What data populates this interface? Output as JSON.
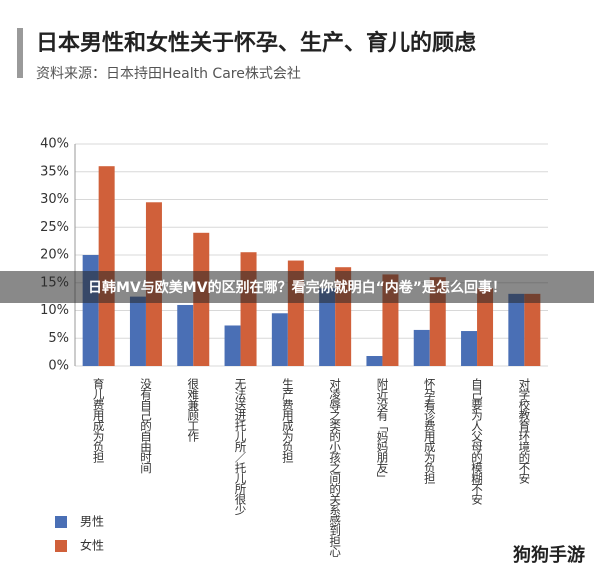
{
  "chart_data": {
    "type": "bar",
    "title": "日本男性和女性关于怀孕、生产、育儿的顾虑",
    "subtitle": "资料来源：日本持田Health Care株式会社",
    "categories": [
      "育儿费用成为负担",
      "没有自己的自由时间",
      "很难兼顾工作",
      "无法送进托儿所／托儿所很少",
      "生产费用成为负担",
      "对凌辱之类的小孩之间的关系感到担心",
      "附近没有「妈妈朋友」",
      "怀孕看诊费用成为负担",
      "自己要为人父母的模糊不安",
      "对学校教育环境的不安"
    ],
    "series": [
      {
        "name": "男性",
        "color": "#4a6fb5",
        "values": [
          20,
          12.5,
          11,
          7.3,
          9.5,
          14,
          1.8,
          6.5,
          6.3,
          13
        ]
      },
      {
        "name": "女性",
        "color": "#d0603a",
        "values": [
          36,
          29.5,
          24,
          20.5,
          19,
          17.8,
          16.5,
          16,
          14,
          13
        ]
      }
    ],
    "ylim": [
      0,
      40
    ],
    "yticks": [
      {
        "value": 0,
        "label": "0%"
      },
      {
        "value": 5,
        "label": "5%"
      },
      {
        "value": 10,
        "label": "10%"
      },
      {
        "value": 15,
        "label": "15%"
      },
      {
        "value": 20,
        "label": "20%"
      },
      {
        "value": 25,
        "label": "25%"
      },
      {
        "value": 30,
        "label": "30%"
      },
      {
        "value": 35,
        "label": "35%"
      },
      {
        "value": 40,
        "label": "40%"
      }
    ],
    "grid": true
  },
  "overlay_text": "日韩MV与欧美MV的区别在哪？看完你就明白“内卷”是怎么回事！",
  "watermark": "狗狗手游"
}
